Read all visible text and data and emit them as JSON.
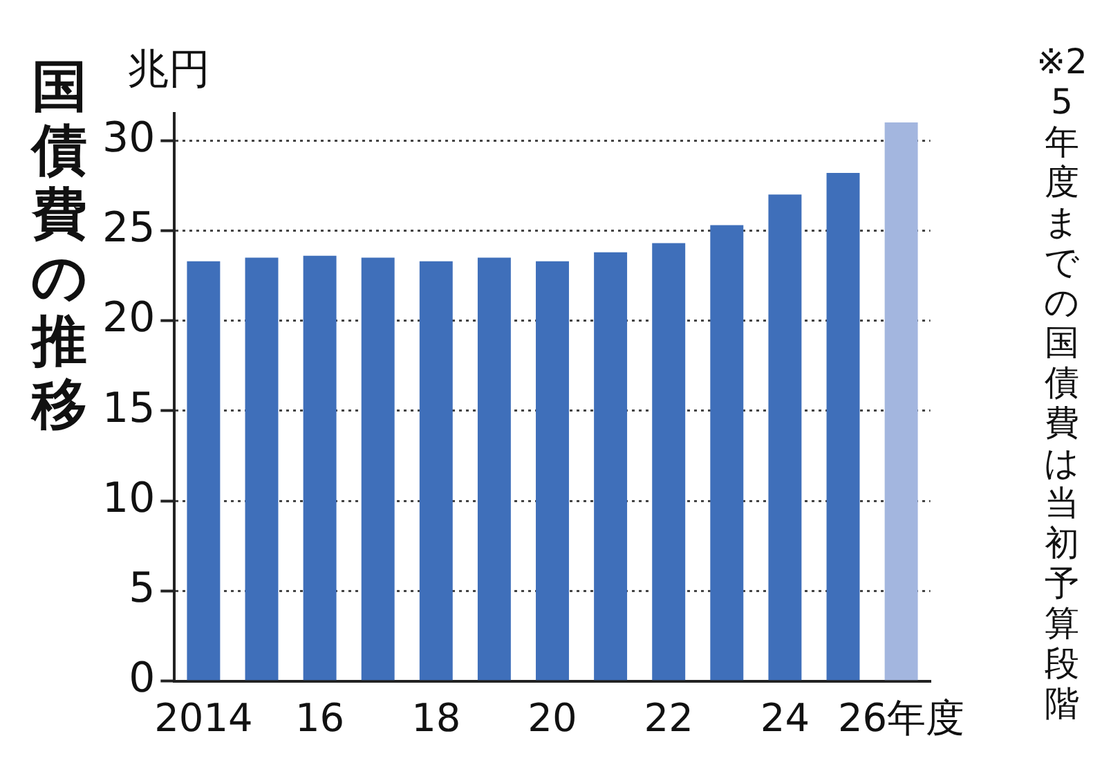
{
  "chart_data": {
    "type": "bar",
    "title": "国債費の推移",
    "ylabel": "兆円",
    "annotations": [
      "※25年度までの国債費は当初予算段階"
    ],
    "categories": [
      "2014",
      null,
      "16",
      null,
      "18",
      null,
      "20",
      null,
      "22",
      null,
      "24",
      null,
      "26年度"
    ],
    "values": [
      23.3,
      23.5,
      23.6,
      23.5,
      23.3,
      23.5,
      23.3,
      23.8,
      24.3,
      25.3,
      27.0,
      28.2,
      31.0
    ],
    "colors": [
      "#3f6fba",
      "#3f6fba",
      "#3f6fba",
      "#3f6fba",
      "#3f6fba",
      "#3f6fba",
      "#3f6fba",
      "#3f6fba",
      "#3f6fba",
      "#3f6fba",
      "#3f6fba",
      "#3f6fba",
      "#a3b6df"
    ],
    "ylim": [
      0,
      31.5
    ],
    "yticks": [
      0,
      5,
      10,
      15,
      20,
      25,
      30
    ],
    "grid": "y"
  }
}
